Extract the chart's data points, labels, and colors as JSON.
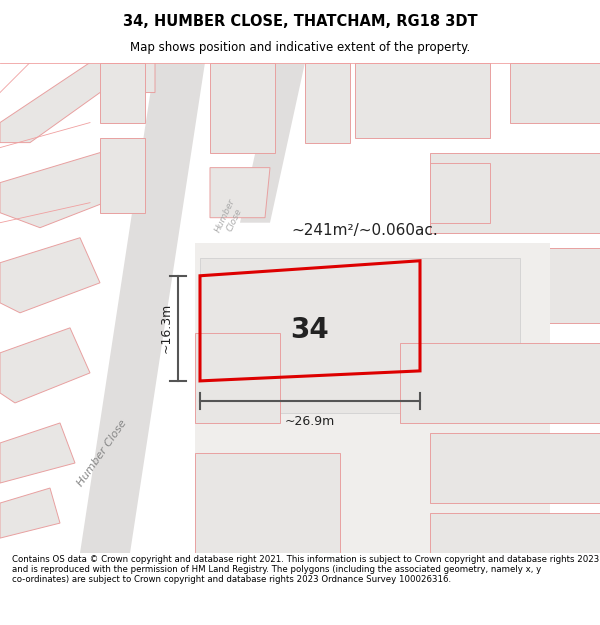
{
  "title": "34, HUMBER CLOSE, THATCHAM, RG18 3DT",
  "subtitle": "Map shows position and indicative extent of the property.",
  "footer": "Contains OS data © Crown copyright and database right 2021. This information is subject to Crown copyright and database rights 2023 and is reproduced with the permission of HM Land Registry. The polygons (including the associated geometry, namely x, y co-ordinates) are subject to Crown copyright and database rights 2023 Ordnance Survey 100026316.",
  "area_label": "~241m²/~0.060ac.",
  "plot_number": "34",
  "dim_width": "~26.9m",
  "dim_height": "~16.3m",
  "street_label_humber": "Humber Close",
  "street_label_close": "Humber Close",
  "map_bg": "#f8f7f5",
  "plot_color": "#dd0000",
  "building_fill": "#e8e6e4",
  "building_edge": "#e8a0a0",
  "road_color": "#e0dedd",
  "dim_color": "#333333",
  "text_color": "#222222"
}
